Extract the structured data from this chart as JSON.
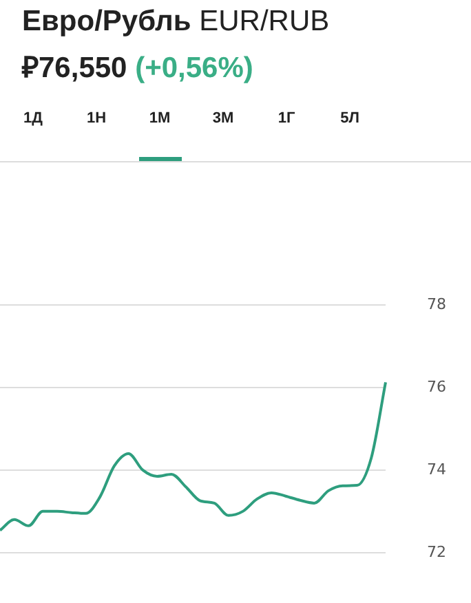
{
  "chart_data": {
    "type": "line",
    "title": "Евро/Рубль EUR/RUB",
    "subtitle": "₽76,550 (+0,56%)",
    "annotations": [
      "1Д",
      "1Н",
      "1М",
      "3М",
      "1Г",
      "5Л"
    ],
    "categories": [
      null,
      null,
      null,
      null,
      null,
      null,
      null,
      null,
      null,
      null,
      null,
      null,
      null,
      null,
      null,
      null,
      null,
      null,
      null,
      null,
      null,
      null,
      null,
      null,
      null,
      null,
      null,
      null
    ],
    "series": [
      {
        "color": "#2e9e7e",
        "values": [
          72.54,
          72.8,
          72.65,
          73.0,
          73.0,
          72.97,
          72.95,
          73.35,
          74.1,
          74.4,
          74.0,
          73.85,
          73.9,
          73.6,
          73.26,
          73.2,
          72.9,
          73.0,
          73.3,
          73.45,
          73.37,
          73.27,
          73.2,
          73.5,
          73.62,
          73.63,
          74.3,
          76.13
        ]
      }
    ],
    "ylim": [
      72,
      78
    ],
    "yticks": [
      72,
      74,
      76,
      78
    ],
    "grid": "y",
    "legend": false,
    "tick_labels": "y",
    "marker": "none",
    "line_style": "solid"
  }
}
